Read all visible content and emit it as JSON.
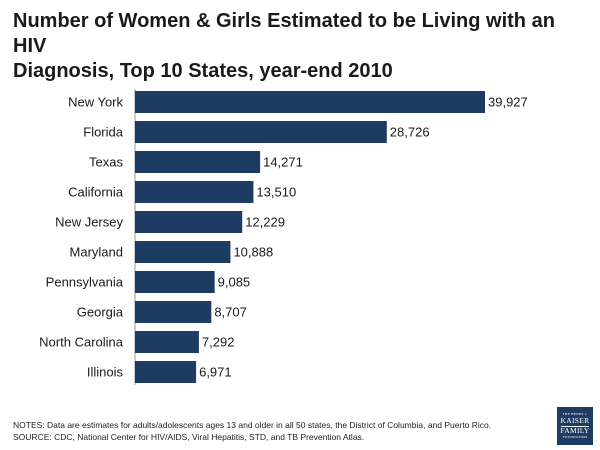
{
  "title_line1": "Number of Women & Girls Estimated to be Living with an HIV",
  "title_line2": "Diagnosis, Top 10 States, year-end 2010",
  "notes": "NOTES: Data are estimates for adults/adolescents ages 13 and older in all 50 states, the District of Columbia, and Puerto Rico.",
  "source": "SOURCE: CDC, National Center for HIV/AIDS, Viral Hepatitis, STD, and TB Prevention Atlas.",
  "logo": {
    "line1": "THE HENRY J.",
    "line2": "KAISER",
    "line3": "FAMILY",
    "line4": "FOUNDATION"
  },
  "colors": {
    "bar": "#1d3b63",
    "logo_bg": "#1d3b63"
  },
  "chart_data": {
    "type": "bar",
    "orientation": "horizontal",
    "title": "Number of Women & Girls Estimated to be Living with an HIV Diagnosis, Top 10 States, year-end 2010",
    "categories": [
      "New York",
      "Florida",
      "Texas",
      "California",
      "New Jersey",
      "Maryland",
      "Pennsylvania",
      "Georgia",
      "North Carolina",
      "Illinois"
    ],
    "values": [
      39927,
      28726,
      14271,
      13510,
      12229,
      10888,
      9085,
      8707,
      7292,
      6971
    ],
    "value_labels": [
      "39,927",
      "28,726",
      "14,271",
      "13,510",
      "12,229",
      "10,888",
      "9,085",
      "8,707",
      "7,292",
      "6,971"
    ],
    "xlim": [
      0,
      39927
    ],
    "grid": false,
    "legend": "none"
  }
}
